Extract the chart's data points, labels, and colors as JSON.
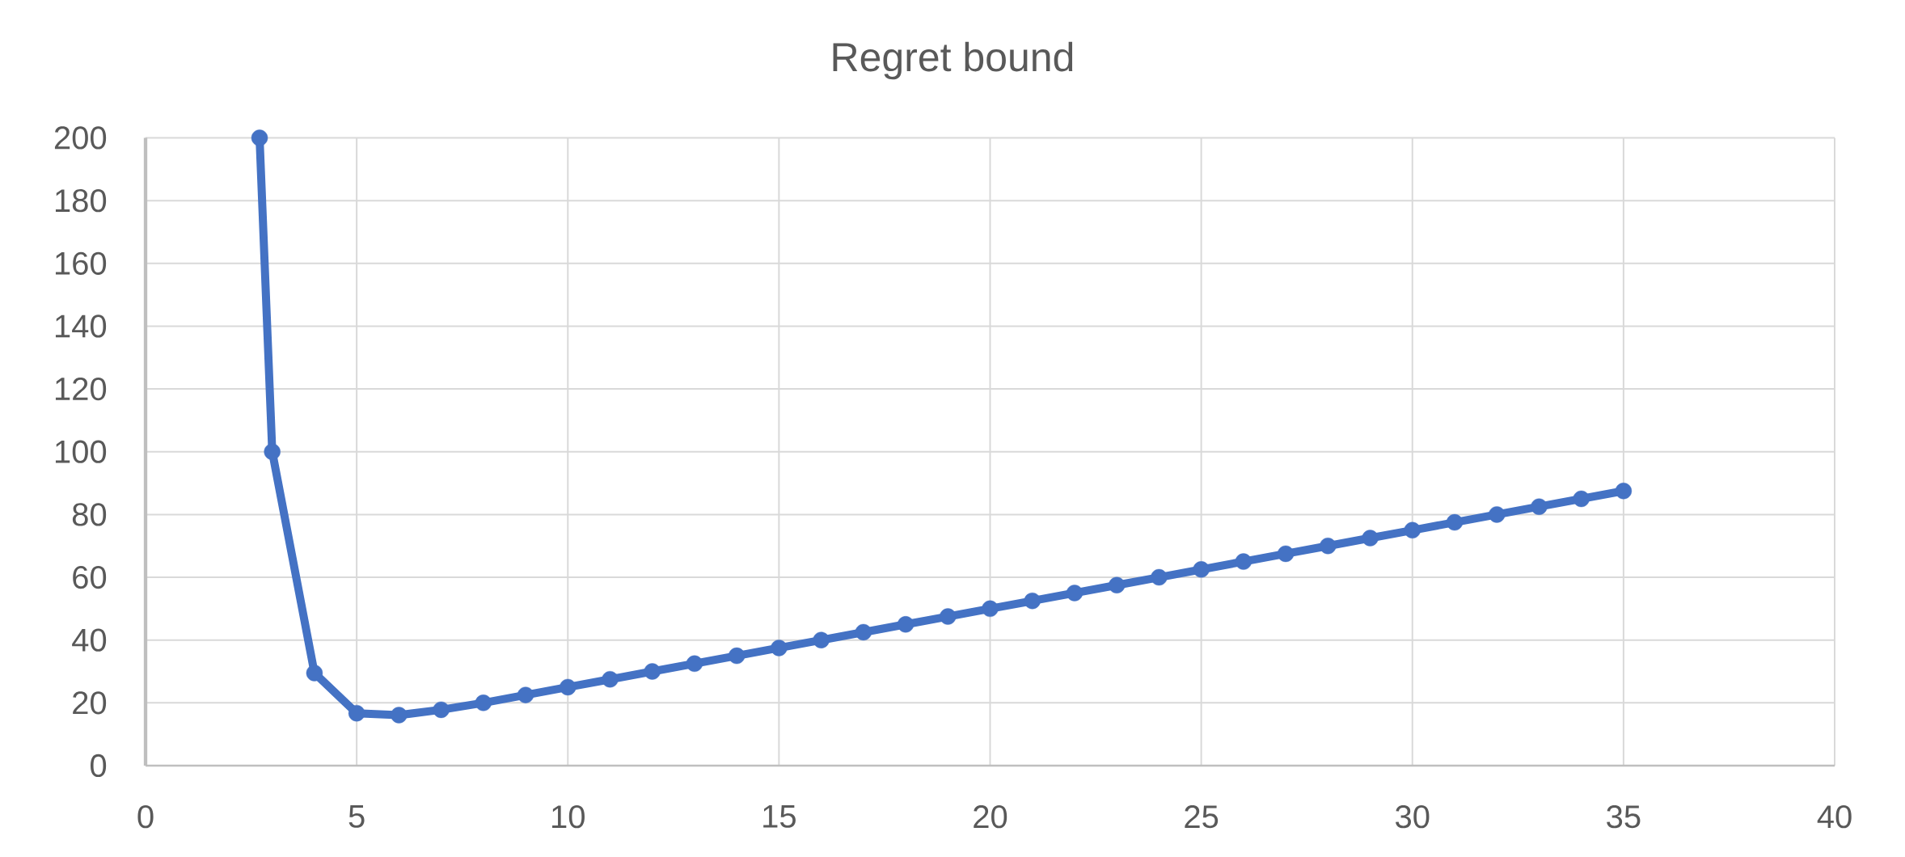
{
  "chart_data": {
    "type": "line",
    "title": "Regret bound",
    "xlim": [
      0,
      40
    ],
    "xticks": [
      0,
      5,
      10,
      15,
      20,
      25,
      30,
      35,
      40
    ],
    "ylim": [
      0,
      200
    ],
    "yticks": [
      0,
      20,
      40,
      60,
      80,
      100,
      120,
      140,
      160,
      180,
      200
    ],
    "grid": true,
    "marker": "circle",
    "line_style": "solid",
    "series": [
      {
        "color": "#4472c4",
        "x": [
          2.7,
          3,
          4,
          5,
          6,
          7,
          8,
          9,
          10,
          11,
          12,
          13,
          14,
          15,
          16,
          17,
          18,
          19,
          20,
          21,
          22,
          23,
          24,
          25,
          26,
          27,
          28,
          29,
          30,
          31,
          32,
          33,
          34,
          35
        ],
        "values": [
          200,
          100,
          29.5,
          16.7,
          16.1,
          17.8,
          20,
          22.5,
          25,
          27.5,
          30,
          32.5,
          35,
          37.5,
          40,
          42.5,
          45,
          47.5,
          50,
          52.5,
          55,
          57.5,
          60,
          62.5,
          65,
          67.5,
          70,
          72.5,
          75,
          77.5,
          80,
          82.5,
          85,
          87.5
        ]
      }
    ]
  }
}
